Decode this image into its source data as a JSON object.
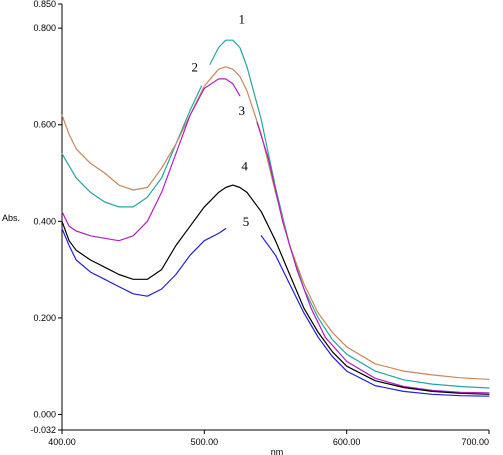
{
  "chart_data": {
    "type": "line",
    "title": "",
    "xlabel": "nm",
    "ylabel": "Abs.",
    "xlim": [
      400,
      700
    ],
    "ylim": [
      -0.032,
      0.85
    ],
    "grid": false,
    "legend": "none",
    "x_ticks": [
      {
        "value": 400,
        "label": "400.00"
      },
      {
        "value": 500,
        "label": "500.00"
      },
      {
        "value": 600,
        "label": "600.00"
      },
      {
        "value": 700,
        "label": "700.00"
      }
    ],
    "y_ticks": [
      {
        "value": 0.85,
        "label": "0.850"
      },
      {
        "value": 0.8,
        "label": "0.800"
      },
      {
        "value": 0.6,
        "label": "0.600"
      },
      {
        "value": 0.4,
        "label": "0.400"
      },
      {
        "value": 0.2,
        "label": "0.200"
      },
      {
        "value": 0.0,
        "label": "0.000"
      },
      {
        "value": -0.032,
        "label": "-0.032"
      }
    ],
    "series": [
      {
        "label": "1",
        "color": "#20a8a0",
        "label_at": [
          524,
          0.81
        ],
        "segments": [
          [
            [
              400,
              0.54
            ],
            [
              410,
              0.49
            ],
            [
              420,
              0.46
            ],
            [
              430,
              0.44
            ],
            [
              440,
              0.43
            ],
            [
              450,
              0.43
            ],
            [
              460,
              0.45
            ],
            [
              470,
              0.49
            ],
            [
              480,
              0.56
            ],
            [
              490,
              0.63
            ],
            [
              498,
              0.68
            ]
          ],
          [
            [
              504,
              0.725
            ],
            [
              510,
              0.76
            ],
            [
              515,
              0.775
            ],
            [
              520,
              0.775
            ],
            [
              525,
              0.76
            ],
            [
              530,
              0.72
            ],
            [
              540,
              0.61
            ],
            [
              550,
              0.47
            ],
            [
              560,
              0.35
            ],
            [
              570,
              0.26
            ],
            [
              580,
              0.2
            ],
            [
              590,
              0.155
            ],
            [
              600,
              0.125
            ],
            [
              620,
              0.09
            ],
            [
              640,
              0.072
            ],
            [
              660,
              0.063
            ],
            [
              680,
              0.058
            ],
            [
              700,
              0.055
            ]
          ]
        ]
      },
      {
        "label": "2",
        "color": "#c8875a",
        "label_at": [
          491,
          0.71
        ],
        "segments": [
          [
            [
              400,
              0.62
            ],
            [
              405,
              0.58
            ],
            [
              410,
              0.55
            ],
            [
              420,
              0.52
            ],
            [
              430,
              0.5
            ],
            [
              440,
              0.475
            ],
            [
              450,
              0.465
            ],
            [
              460,
              0.47
            ],
            [
              470,
              0.51
            ],
            [
              480,
              0.56
            ],
            [
              490,
              0.62
            ],
            [
              500,
              0.68
            ],
            [
              510,
              0.715
            ],
            [
              515,
              0.72
            ],
            [
              520,
              0.715
            ],
            [
              525,
              0.7
            ],
            [
              530,
              0.67
            ],
            [
              540,
              0.58
            ],
            [
              550,
              0.46
            ],
            [
              560,
              0.35
            ],
            [
              570,
              0.27
            ],
            [
              580,
              0.21
            ],
            [
              590,
              0.17
            ],
            [
              600,
              0.14
            ],
            [
              620,
              0.105
            ],
            [
              640,
              0.09
            ],
            [
              660,
              0.082
            ],
            [
              680,
              0.076
            ],
            [
              700,
              0.073
            ]
          ]
        ]
      },
      {
        "label": "3",
        "color": "#b020c0",
        "label_at": [
          524,
          0.62
        ],
        "segments": [
          [
            [
              400,
              0.42
            ],
            [
              405,
              0.39
            ],
            [
              410,
              0.38
            ],
            [
              420,
              0.37
            ],
            [
              430,
              0.365
            ],
            [
              440,
              0.36
            ],
            [
              450,
              0.37
            ],
            [
              460,
              0.4
            ],
            [
              470,
              0.46
            ],
            [
              480,
              0.54
            ],
            [
              490,
              0.62
            ],
            [
              500,
              0.675
            ],
            [
              510,
              0.695
            ],
            [
              515,
              0.695
            ],
            [
              520,
              0.685
            ],
            [
              525,
              0.66
            ]
          ],
          [
            [
              537,
              0.605
            ],
            [
              545,
              0.53
            ],
            [
              555,
              0.4
            ],
            [
              565,
              0.3
            ],
            [
              575,
              0.22
            ],
            [
              585,
              0.16
            ],
            [
              600,
              0.11
            ],
            [
              620,
              0.075
            ],
            [
              640,
              0.058
            ],
            [
              660,
              0.05
            ],
            [
              680,
              0.046
            ],
            [
              700,
              0.045
            ]
          ]
        ]
      },
      {
        "label": "4",
        "color": "#000000",
        "label_at": [
          526,
          0.505
        ],
        "segments": [
          [
            [
              400,
              0.4
            ],
            [
              405,
              0.36
            ],
            [
              410,
              0.34
            ],
            [
              420,
              0.32
            ],
            [
              430,
              0.305
            ],
            [
              440,
              0.29
            ],
            [
              450,
              0.28
            ],
            [
              460,
              0.28
            ],
            [
              470,
              0.3
            ],
            [
              480,
              0.35
            ],
            [
              490,
              0.39
            ],
            [
              500,
              0.43
            ],
            [
              510,
              0.46
            ],
            [
              515,
              0.47
            ],
            [
              520,
              0.475
            ],
            [
              525,
              0.47
            ],
            [
              530,
              0.46
            ],
            [
              540,
              0.42
            ],
            [
              550,
              0.36
            ],
            [
              560,
              0.29
            ],
            [
              570,
              0.22
            ],
            [
              580,
              0.17
            ],
            [
              590,
              0.13
            ],
            [
              600,
              0.1
            ],
            [
              620,
              0.07
            ],
            [
              640,
              0.056
            ],
            [
              660,
              0.048
            ],
            [
              680,
              0.044
            ],
            [
              700,
              0.042
            ]
          ]
        ]
      },
      {
        "label": "5",
        "color": "#2020d8",
        "label_at": [
          527,
          0.39
        ],
        "segments": [
          [
            [
              400,
              0.385
            ],
            [
              405,
              0.35
            ],
            [
              410,
              0.32
            ],
            [
              420,
              0.295
            ],
            [
              430,
              0.28
            ],
            [
              440,
              0.265
            ],
            [
              450,
              0.25
            ],
            [
              460,
              0.245
            ],
            [
              470,
              0.26
            ],
            [
              480,
              0.29
            ],
            [
              490,
              0.33
            ],
            [
              500,
              0.36
            ],
            [
              510,
              0.375
            ],
            [
              515,
              0.385
            ]
          ],
          [
            [
              540,
              0.37
            ],
            [
              550,
              0.33
            ],
            [
              560,
              0.27
            ],
            [
              570,
              0.21
            ],
            [
              580,
              0.16
            ],
            [
              590,
              0.12
            ],
            [
              600,
              0.09
            ],
            [
              620,
              0.06
            ],
            [
              640,
              0.048
            ],
            [
              660,
              0.042
            ],
            [
              680,
              0.039
            ],
            [
              700,
              0.038
            ]
          ]
        ]
      }
    ]
  }
}
